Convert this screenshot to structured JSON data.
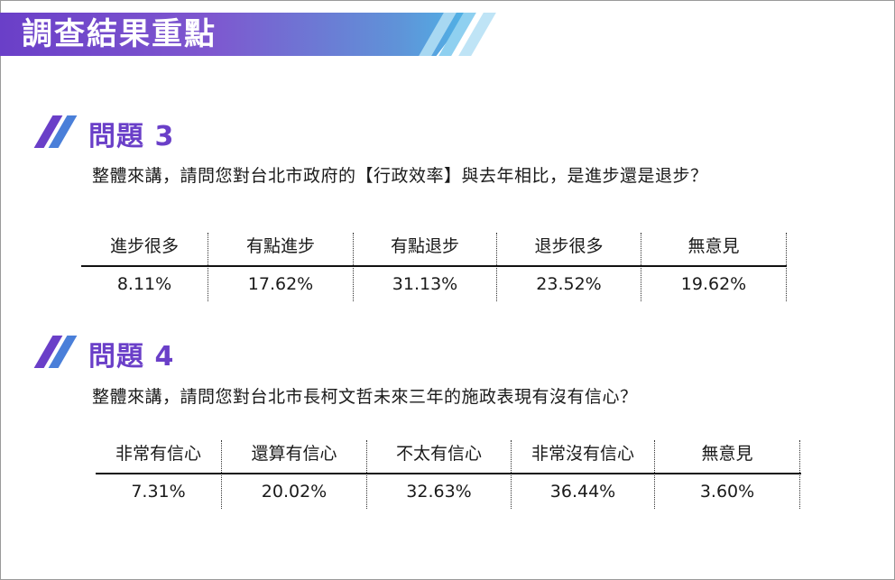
{
  "header": {
    "title": "調查結果重點"
  },
  "questions": [
    {
      "title": "問題 3",
      "text": "整體來講，請問您對台北市政府的【行政效率】與去年相比，是進步還是退步？",
      "columns": [
        {
          "label": "進步很多",
          "value": "8.11%"
        },
        {
          "label": "有點進步",
          "value": "17.62%"
        },
        {
          "label": "有點退步",
          "value": "31.13%"
        },
        {
          "label": "退步很多",
          "value": "23.52%"
        },
        {
          "label": "無意見",
          "value": "19.62%"
        }
      ]
    },
    {
      "title": "問題 4",
      "text": "整體來講，請問您對台北市長柯文哲未來三年的施政表現有沒有信心？",
      "columns": [
        {
          "label": "非常有信心",
          "value": "7.31%"
        },
        {
          "label": "還算有信心",
          "value": "20.02%"
        },
        {
          "label": "不太有信心",
          "value": "32.63%"
        },
        {
          "label": "非常沒有信心",
          "value": "36.44%"
        },
        {
          "label": "無意見",
          "value": "3.60%"
        }
      ]
    }
  ],
  "colors": {
    "accent_purple": "#6a3fc8",
    "accent_blue": "#4a7fd9",
    "accent_light_blue": "#8fd0f0"
  }
}
